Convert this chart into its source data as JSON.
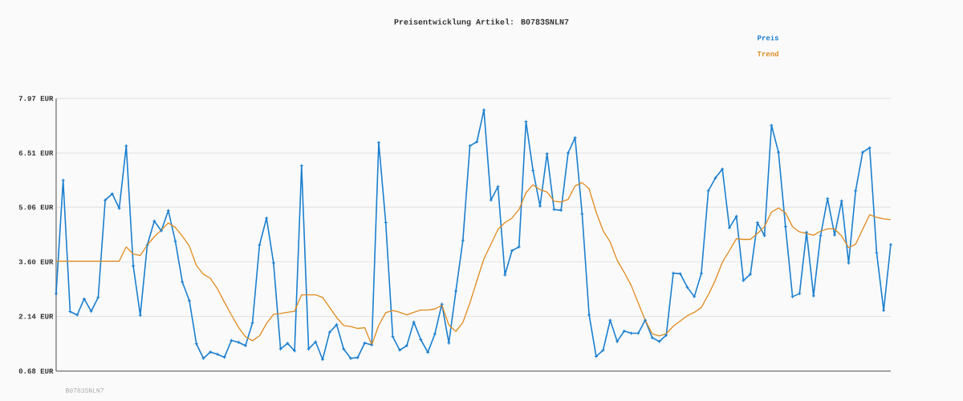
{
  "chart_data": {
    "type": "line",
    "title": "Preisentwicklung Artikel: B0783SNLN7",
    "categories": [
      null,
      null,
      null,
      null,
      null,
      null,
      null,
      null,
      null,
      null,
      null,
      null,
      null,
      null,
      null,
      null,
      null,
      null,
      null,
      null,
      null,
      null,
      null,
      null,
      null,
      null,
      null,
      null,
      null,
      null,
      null,
      null,
      null,
      null,
      null,
      null,
      null,
      null,
      null,
      null,
      null,
      null,
      null,
      null,
      null,
      null,
      null,
      null,
      null,
      null,
      null,
      null,
      null,
      null,
      null,
      null,
      null,
      null,
      null,
      null,
      null,
      null,
      null,
      null,
      null,
      null,
      null,
      null,
      null,
      null,
      null,
      null,
      null,
      null,
      null,
      null,
      null,
      null,
      null,
      null,
      null,
      null,
      null,
      null,
      null,
      null,
      null,
      null,
      null,
      null,
      null,
      null,
      null,
      null,
      null,
      null,
      null,
      null,
      null,
      null,
      null,
      null,
      null,
      null,
      null,
      null,
      null,
      null,
      null,
      null,
      null,
      null,
      null,
      null,
      null,
      null,
      null,
      null,
      null,
      null
    ],
    "series": [
      {
        "name": "Preis",
        "color": "#1a7fcf",
        "marker": "cross",
        "values": [
          2.75,
          5.78,
          2.27,
          2.18,
          2.61,
          2.28,
          2.65,
          5.25,
          5.42,
          5.03,
          6.7,
          3.49,
          2.17,
          4.05,
          4.69,
          4.43,
          4.97,
          4.15,
          3.06,
          2.56,
          1.41,
          1.02,
          1.19,
          1.13,
          1.05,
          1.5,
          1.45,
          1.36,
          1.97,
          4.05,
          4.77,
          3.57,
          1.27,
          1.42,
          1.22,
          6.17,
          1.27,
          1.46,
          0.99,
          1.72,
          1.92,
          1.27,
          1.02,
          1.04,
          1.43,
          1.38,
          6.79,
          4.65,
          1.6,
          1.24,
          1.36,
          1.99,
          1.52,
          1.18,
          1.67,
          2.47,
          1.43,
          2.82,
          4.17,
          6.7,
          6.81,
          7.66,
          5.25,
          5.61,
          3.25,
          3.9,
          4.0,
          7.35,
          6.04,
          5.09,
          6.49,
          5.0,
          4.98,
          6.51,
          6.92,
          4.88,
          2.18,
          1.07,
          1.24,
          2.04,
          1.47,
          1.75,
          1.69,
          1.69,
          2.04,
          1.57,
          1.47,
          1.64,
          3.3,
          3.28,
          2.92,
          2.67,
          3.29,
          5.5,
          5.84,
          6.08,
          4.51,
          4.82,
          3.1,
          3.27,
          4.65,
          4.3,
          7.25,
          6.53,
          4.54,
          2.67,
          2.75,
          4.39,
          2.69,
          4.3,
          5.29,
          4.32,
          5.23,
          3.57,
          5.5,
          6.53,
          6.65,
          3.84,
          2.3,
          4.06
        ]
      },
      {
        "name": "Trend",
        "color": "#e08a1e",
        "marker": "none",
        "values": [
          3.62,
          3.62,
          3.62,
          3.62,
          3.62,
          3.62,
          3.62,
          3.62,
          3.62,
          3.62,
          4.0,
          3.81,
          3.77,
          4.05,
          4.27,
          4.45,
          4.64,
          4.52,
          4.29,
          4.02,
          3.5,
          3.27,
          3.16,
          2.88,
          2.52,
          2.18,
          1.85,
          1.6,
          1.49,
          1.62,
          1.95,
          2.2,
          2.22,
          2.25,
          2.28,
          2.72,
          2.72,
          2.72,
          2.65,
          2.38,
          2.11,
          1.9,
          1.87,
          1.82,
          1.84,
          1.38,
          1.9,
          2.24,
          2.3,
          2.25,
          2.18,
          2.25,
          2.31,
          2.31,
          2.34,
          2.44,
          1.91,
          1.74,
          1.98,
          2.5,
          3.1,
          3.68,
          4.07,
          4.47,
          4.65,
          4.77,
          5.0,
          5.45,
          5.66,
          5.53,
          5.47,
          5.22,
          5.2,
          5.27,
          5.63,
          5.72,
          5.55,
          4.93,
          4.43,
          4.13,
          3.64,
          3.32,
          2.97,
          2.5,
          2.04,
          1.68,
          1.62,
          1.68,
          1.88,
          2.02,
          2.16,
          2.25,
          2.38,
          2.72,
          3.11,
          3.59,
          3.9,
          4.22,
          4.2,
          4.2,
          4.36,
          4.54,
          4.93,
          5.04,
          4.91,
          4.54,
          4.4,
          4.36,
          4.31,
          4.42,
          4.48,
          4.48,
          4.29,
          3.98,
          4.07,
          4.47,
          4.86,
          4.79,
          4.75,
          4.73
        ]
      }
    ],
    "ylim": [
      0.68,
      7.97
    ],
    "yticks": [
      {
        "value": 0.68,
        "label": "0.68 EUR"
      },
      {
        "value": 2.14,
        "label": "2.14 EUR"
      },
      {
        "value": 3.6,
        "label": "3.60 EUR"
      },
      {
        "value": 5.06,
        "label": "5.06 EUR"
      },
      {
        "value": 6.51,
        "label": "6.51 EUR"
      },
      {
        "value": 7.97,
        "label": "7.97 EUR"
      }
    ],
    "grid": "y",
    "legend": "top right",
    "annotations": [
      "B0783SNLN7"
    ]
  }
}
